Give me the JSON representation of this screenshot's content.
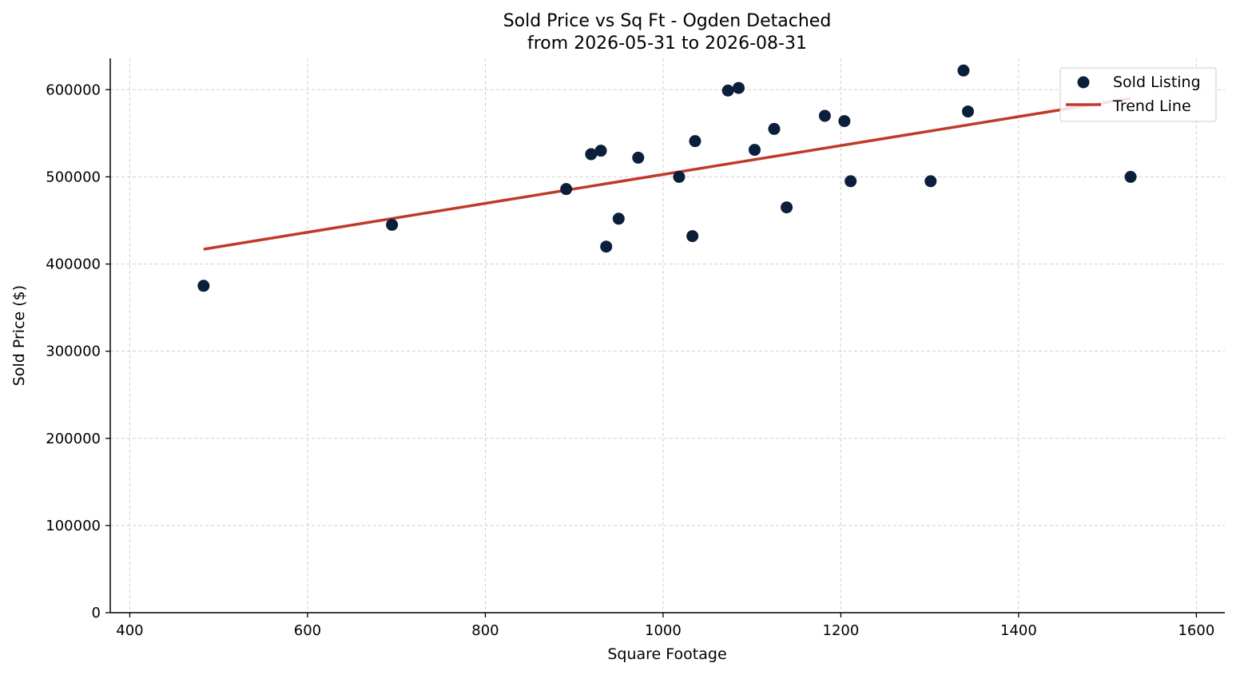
{
  "chart_data": {
    "type": "scatter",
    "title_lines": [
      "Sold Price vs Sq Ft - Ogden Detached",
      "from 2026-05-31 to 2026-08-31"
    ],
    "xlabel": "Square Footage",
    "ylabel": "Sold Price ($)",
    "xlim": [
      378,
      1632
    ],
    "ylim": [
      0,
      636000
    ],
    "x_ticks": [
      400,
      600,
      800,
      1000,
      1200,
      1400,
      1600
    ],
    "y_ticks": [
      0,
      100000,
      200000,
      300000,
      400000,
      500000,
      600000
    ],
    "grid": true,
    "legend_position": "top-right",
    "colors": {
      "points": "#0b1e3a",
      "trend": "#c0392b",
      "grid": "#d0d0d0"
    },
    "series": [
      {
        "name": "Sold Listing",
        "kind": "scatter",
        "points": [
          [
            483,
            375000
          ],
          [
            695,
            445000
          ],
          [
            891,
            486000
          ],
          [
            919,
            526000
          ],
          [
            930,
            530000
          ],
          [
            936,
            420000
          ],
          [
            950,
            452000
          ],
          [
            972,
            522000
          ],
          [
            1018,
            500000
          ],
          [
            1033,
            432000
          ],
          [
            1036,
            541000
          ],
          [
            1073,
            599000
          ],
          [
            1085,
            602000
          ],
          [
            1103,
            531000
          ],
          [
            1125,
            555000
          ],
          [
            1139,
            465000
          ],
          [
            1182,
            570000
          ],
          [
            1204,
            564000
          ],
          [
            1211,
            495000
          ],
          [
            1301,
            495000
          ],
          [
            1338,
            622000
          ],
          [
            1343,
            575000
          ],
          [
            1526,
            500000
          ]
        ]
      },
      {
        "name": "Trend Line",
        "kind": "line",
        "points": [
          [
            483,
            417000
          ],
          [
            1526,
            590000
          ]
        ]
      }
    ]
  }
}
